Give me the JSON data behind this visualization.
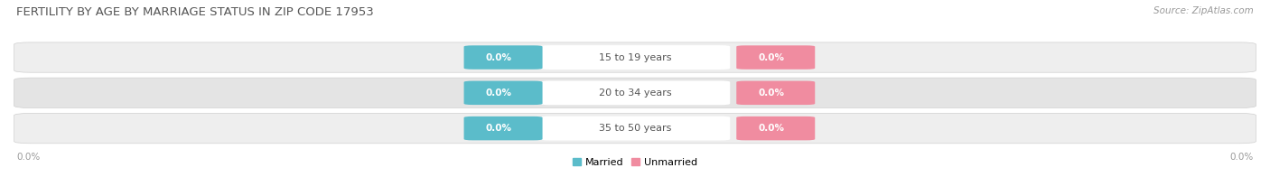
{
  "title": "FERTILITY BY AGE BY MARRIAGE STATUS IN ZIP CODE 17953",
  "source": "Source: ZipAtlas.com",
  "age_groups": [
    "15 to 19 years",
    "20 to 34 years",
    "35 to 50 years"
  ],
  "married_values": [
    0.0,
    0.0,
    0.0
  ],
  "unmarried_values": [
    0.0,
    0.0,
    0.0
  ],
  "married_color": "#5bbcca",
  "unmarried_color": "#f08ca0",
  "row_bg_even": "#eeeeee",
  "row_bg_odd": "#e4e4e4",
  "title_fontsize": 9.5,
  "source_fontsize": 7.5,
  "label_fontsize": 8,
  "value_label_fontsize": 7.5,
  "axis_label": "0.0%",
  "legend_married": "Married",
  "legend_unmarried": "Unmarried",
  "figsize": [
    14.06,
    1.96
  ],
  "dpi": 100
}
